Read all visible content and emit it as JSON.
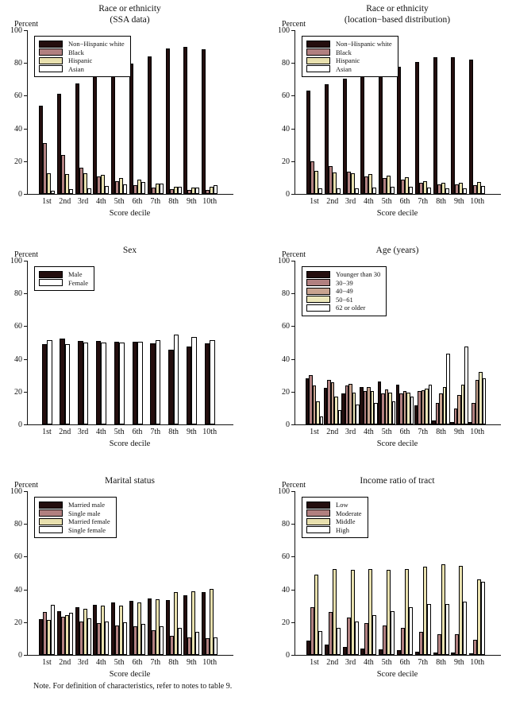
{
  "note": "Note. For definition of characteristics, refer to notes to table 9.",
  "shared": {
    "ylabel": "Percent",
    "xlabel": "Score decile",
    "categories": [
      "1st",
      "2nd",
      "3rd",
      "4th",
      "5th",
      "6th",
      "7th",
      "8th",
      "9th",
      "10th"
    ],
    "yticks": [
      0,
      20,
      40,
      60,
      80,
      100
    ],
    "ylim": [
      0,
      100
    ],
    "grid": false,
    "legend_position": "upper-left-inside",
    "colors": {
      "dark": "#240e0e",
      "rose": "#b18080",
      "tanbrown": "#c9a490",
      "cream": "#e8e0ae",
      "lightcream": "#ece7ba",
      "white": "#ffffff"
    }
  },
  "chart_data": [
    {
      "id": "race-ethnicity-ssa",
      "type": "bar",
      "title_lines": [
        "Race or ethnicity",
        "(SSA data)"
      ],
      "series": [
        {
          "name": "Non−Hispanic white",
          "color": "dark",
          "values": [
            54,
            61,
            67.5,
            73,
            77.5,
            79.5,
            84,
            89,
            90,
            88.5
          ]
        },
        {
          "name": "Black",
          "color": "rose",
          "values": [
            31,
            24,
            16,
            10.5,
            8,
            5.5,
            4,
            3,
            2.5,
            2.5
          ]
        },
        {
          "name": "Hispanic",
          "color": "cream",
          "values": [
            12.5,
            12,
            12.5,
            11.5,
            9.5,
            8.5,
            6.5,
            4.5,
            4,
            4.5
          ]
        },
        {
          "name": "Asian",
          "color": "white",
          "values": [
            2,
            3,
            3.5,
            5,
            6,
            7.5,
            6.5,
            4.5,
            4,
            5.5
          ]
        }
      ]
    },
    {
      "id": "race-ethnicity-location",
      "type": "bar",
      "title_lines": [
        "Race or ethnicity",
        "(location−based distribution)"
      ],
      "series": [
        {
          "name": "Non−Hispanic white",
          "color": "dark",
          "values": [
            63,
            67,
            70.5,
            73,
            75.5,
            77.5,
            80.5,
            83.5,
            83.5,
            82
          ]
        },
        {
          "name": "Black",
          "color": "rose",
          "values": [
            20,
            17,
            13.5,
            10.5,
            9.5,
            8.5,
            7,
            6,
            6,
            5.5
          ]
        },
        {
          "name": "Hispanic",
          "color": "cream",
          "values": [
            14,
            13,
            12.5,
            12,
            11,
            10,
            8,
            7,
            7,
            7.5
          ]
        },
        {
          "name": "Asian",
          "color": "white",
          "values": [
            3.5,
            3.5,
            3.5,
            4,
            4.5,
            4.5,
            4,
            3.5,
            3.5,
            5
          ]
        }
      ]
    },
    {
      "id": "sex",
      "type": "bar",
      "title_lines": [
        "Sex"
      ],
      "series": [
        {
          "name": "Male",
          "color": "dark",
          "values": [
            49,
            52.5,
            51,
            51,
            50.5,
            50.5,
            49.5,
            45.5,
            47.5,
            49.5
          ]
        },
        {
          "name": "Female",
          "color": "white",
          "values": [
            51.5,
            49,
            50,
            50,
            50,
            50.5,
            51.5,
            55,
            53.5,
            51.5
          ]
        }
      ]
    },
    {
      "id": "age-years",
      "type": "bar",
      "title_lines": [
        "Age (years)"
      ],
      "series": [
        {
          "name": "Younger than 30",
          "color": "dark",
          "values": [
            28,
            22.5,
            19,
            23,
            26,
            24.5,
            11.5,
            2.5,
            1.5,
            1.5
          ]
        },
        {
          "name": "30−39",
          "color": "rose",
          "values": [
            30,
            27,
            24,
            20.5,
            19,
            19,
            20.5,
            13,
            9.5,
            13
          ]
        },
        {
          "name": "40−49",
          "color": "tanbrown",
          "values": [
            24,
            25.5,
            25,
            23,
            21.5,
            20.5,
            21,
            19,
            18,
            27
          ]
        },
        {
          "name": "50−61",
          "color": "lightcream",
          "values": [
            14,
            17,
            19.5,
            20.5,
            19.5,
            19.5,
            22,
            23,
            24.5,
            32
          ]
        },
        {
          "name": "62 or older",
          "color": "white",
          "values": [
            5,
            8.5,
            12,
            13,
            14,
            17,
            24.5,
            43,
            47.5,
            28
          ]
        }
      ]
    },
    {
      "id": "marital-status",
      "type": "bar",
      "title_lines": [
        "Marital status"
      ],
      "series": [
        {
          "name": "Married male",
          "color": "dark",
          "values": [
            22,
            26.5,
            29,
            30.5,
            32,
            33,
            34.5,
            33.5,
            36.5,
            38.5
          ]
        },
        {
          "name": "Single male",
          "color": "rose",
          "values": [
            26,
            23.5,
            20.5,
            19.5,
            18,
            17.5,
            15,
            11.5,
            10.5,
            10
          ]
        },
        {
          "name": "Married female",
          "color": "cream",
          "values": [
            21.5,
            24.5,
            28,
            30,
            30,
            32,
            34,
            38.5,
            39,
            40.5
          ]
        },
        {
          "name": "Single female",
          "color": "white",
          "values": [
            30.5,
            25.5,
            22.5,
            20.5,
            20,
            19,
            17.5,
            16.5,
            14,
            10.5
          ]
        }
      ]
    },
    {
      "id": "income-ratio-of-tract",
      "type": "bar",
      "title_lines": [
        "Income ratio of tract"
      ],
      "series": [
        {
          "name": "Low",
          "color": "dark",
          "values": [
            8.5,
            6.5,
            5,
            4,
            3.5,
            3,
            2,
            1.5,
            1.5,
            1
          ]
        },
        {
          "name": "Moderate",
          "color": "rose",
          "values": [
            29,
            26,
            23,
            19.5,
            18,
            16.5,
            14,
            12.5,
            12.5,
            9
          ]
        },
        {
          "name": "Middle",
          "color": "cream",
          "values": [
            49,
            52.5,
            52,
            52.5,
            52,
            52.5,
            54,
            55.5,
            54.5,
            46
          ]
        },
        {
          "name": "High",
          "color": "white",
          "values": [
            14.5,
            16.5,
            20.5,
            24.5,
            26.5,
            29,
            31,
            31,
            32.5,
            44.5
          ]
        }
      ]
    }
  ]
}
